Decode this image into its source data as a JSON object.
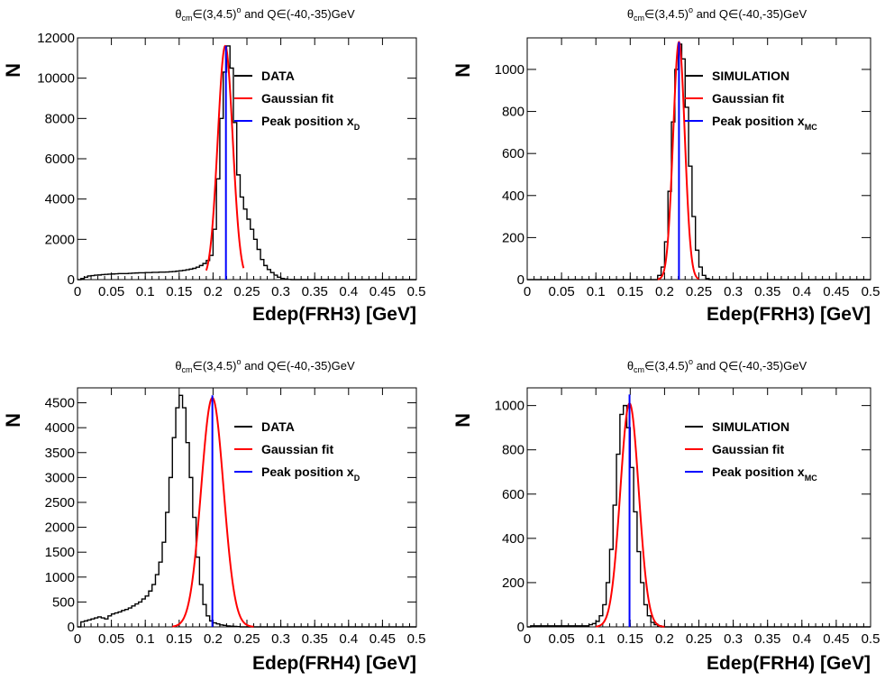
{
  "chart_data": [
    {
      "type": "histogram",
      "title": "θcm∈(3,4.5)° and Q∈(-40,-35)GeV",
      "title_parts": {
        "theta": "θ",
        "theta_sub": "cm",
        "range": "∈(3,4.5)",
        "deg": "o",
        "rest": "and Q∈(-40,-35)GeV"
      },
      "xlabel": "Edep(FRH3) [GeV]",
      "ylabel": "N",
      "xlim": [
        0,
        0.5
      ],
      "ylim": [
        0,
        12000
      ],
      "xticks": [
        "0",
        "0.05",
        "0.1",
        "0.15",
        "0.2",
        "0.25",
        "0.3",
        "0.35",
        "0.4",
        "0.45",
        "0.5"
      ],
      "yticks": [
        "0",
        "2000",
        "4000",
        "6000",
        "8000",
        "10000",
        "12000"
      ],
      "hist": {
        "bin_width": 0.005,
        "x_start": 0.0,
        "values": [
          0,
          50,
          120,
          180,
          200,
          220,
          230,
          250,
          260,
          270,
          280,
          290,
          300,
          300,
          300,
          310,
          320,
          330,
          340,
          340,
          350,
          350,
          360,
          360,
          370,
          370,
          380,
          390,
          400,
          420,
          440,
          460,
          490,
          520,
          560,
          620,
          700,
          800,
          950,
          1200,
          2500,
          5000,
          8000,
          10300,
          11600,
          10500,
          7800,
          5200,
          4100,
          3500,
          3000,
          2500,
          2000,
          1500,
          1000,
          700,
          500,
          350,
          220,
          120,
          60,
          30,
          10,
          0,
          0,
          0,
          0,
          0,
          0,
          0,
          0,
          0,
          0,
          0,
          0,
          0,
          0,
          0,
          0,
          0,
          0,
          0,
          0,
          0,
          0,
          0,
          0,
          0,
          0,
          0,
          0,
          0,
          0,
          0,
          0,
          0,
          0,
          0,
          0,
          0
        ]
      },
      "fit": {
        "amplitude": 11600,
        "mean": 0.218,
        "sigma": 0.011,
        "xrange": [
          0.19,
          0.245
        ]
      },
      "peak": {
        "x": 0.219,
        "y": 11600
      },
      "legend": [
        {
          "label": "DATA",
          "sub": "",
          "color": "#000000"
        },
        {
          "label": "Gaussian fit",
          "sub": "",
          "color": "#ff0000"
        },
        {
          "label": "Peak position x",
          "sub": "D",
          "color": "#0000ff"
        }
      ],
      "legend_position": "top-right",
      "grid": false
    },
    {
      "type": "histogram",
      "title": "θcm∈(3,4.5)° and Q∈(-40,-35)GeV",
      "title_parts": {
        "theta": "θ",
        "theta_sub": "cm",
        "range": "∈(3,4.5)",
        "deg": "o",
        "rest": "and Q∈(-40,-35)GeV"
      },
      "xlabel": "Edep(FRH3) [GeV]",
      "ylabel": "N",
      "xlim": [
        0,
        0.5
      ],
      "ylim": [
        0,
        1150
      ],
      "xticks": [
        "0",
        "0.05",
        "0.1",
        "0.15",
        "0.2",
        "0.25",
        "0.3",
        "0.35",
        "0.4",
        "0.45",
        "0.5"
      ],
      "yticks": [
        "0",
        "200",
        "400",
        "600",
        "800",
        "1000"
      ],
      "hist": {
        "bin_width": 0.005,
        "x_start": 0.0,
        "values": [
          0,
          0,
          0,
          0,
          0,
          0,
          0,
          0,
          0,
          0,
          0,
          0,
          0,
          0,
          0,
          0,
          0,
          0,
          0,
          0,
          0,
          0,
          0,
          0,
          0,
          0,
          0,
          0,
          0,
          0,
          0,
          0,
          0,
          0,
          0,
          0,
          0,
          0,
          0,
          0,
          0,
          0,
          0,
          0,
          0,
          0,
          0,
          0,
          0,
          0,
          0,
          0,
          0,
          0,
          0,
          0,
          0,
          0,
          0,
          0,
          0,
          0,
          0,
          0,
          0,
          0,
          0,
          0,
          0,
          0,
          0,
          0,
          0,
          0,
          0,
          0,
          0,
          0,
          0,
          0,
          0,
          0,
          0,
          0,
          0,
          0,
          0,
          0,
          0,
          0,
          0,
          0,
          0,
          0,
          0,
          0,
          0,
          0,
          0,
          0
        ]
      },
      "hist_sparse": [
        [
          0.19,
          20
        ],
        [
          0.195,
          60
        ],
        [
          0.2,
          180
        ],
        [
          0.205,
          420
        ],
        [
          0.21,
          750
        ],
        [
          0.215,
          1000
        ],
        [
          0.22,
          1120
        ],
        [
          0.225,
          1050
        ],
        [
          0.23,
          820
        ],
        [
          0.235,
          540
        ],
        [
          0.24,
          300
        ],
        [
          0.245,
          140
        ],
        [
          0.25,
          60
        ],
        [
          0.255,
          20
        ],
        [
          0.26,
          5
        ]
      ],
      "fit": {
        "amplitude": 1130,
        "mean": 0.221,
        "sigma": 0.0085,
        "xrange": [
          0.19,
          0.25
        ]
      },
      "peak": {
        "x": 0.221,
        "y": 1130
      },
      "legend": [
        {
          "label": "SIMULATION",
          "sub": "",
          "color": "#000000"
        },
        {
          "label": "Gaussian fit",
          "sub": "",
          "color": "#ff0000"
        },
        {
          "label": "Peak position x",
          "sub": "MC",
          "color": "#0000ff"
        }
      ],
      "legend_position": "top-right",
      "grid": false
    },
    {
      "type": "histogram",
      "title": "θcm∈(3,4.5)° and Q∈(-40,-35)GeV",
      "title_parts": {
        "theta": "θ",
        "theta_sub": "cm",
        "range": "∈(3,4.5)",
        "deg": "o",
        "rest": "and Q∈(-40,-35)GeV"
      },
      "xlabel": "Edep(FRH4) [GeV]",
      "ylabel": "N",
      "xlim": [
        0,
        0.5
      ],
      "ylim": [
        0,
        4800
      ],
      "xticks": [
        "0",
        "0.05",
        "0.1",
        "0.15",
        "0.2",
        "0.25",
        "0.3",
        "0.35",
        "0.4",
        "0.45",
        "0.5"
      ],
      "yticks": [
        "0",
        "500",
        "1000",
        "1500",
        "2000",
        "2500",
        "3000",
        "3500",
        "4000",
        "4500"
      ],
      "hist": {
        "bin_width": 0.005,
        "x_start": 0.0,
        "values": [
          0,
          100,
          120,
          140,
          160,
          180,
          200,
          180,
          160,
          220,
          260,
          280,
          300,
          330,
          350,
          380,
          420,
          460,
          500,
          560,
          620,
          720,
          850,
          1050,
          1300,
          1700,
          2300,
          3000,
          3800,
          4400,
          4650,
          4400,
          3700,
          3000,
          2200,
          1400,
          850,
          450,
          220,
          120,
          80,
          60,
          40,
          30,
          20,
          15,
          10,
          5,
          0,
          0,
          0,
          0,
          0,
          0,
          0,
          0,
          0,
          0,
          0,
          0,
          0,
          0,
          0,
          0,
          0,
          0,
          0,
          0,
          0,
          0,
          0,
          0,
          0,
          0,
          0,
          0,
          0,
          0,
          0,
          0,
          0,
          0,
          0,
          0,
          0,
          0,
          0,
          0,
          0,
          0,
          0,
          0,
          0,
          0,
          0,
          0,
          0,
          0,
          0,
          0
        ]
      },
      "fit": {
        "amplitude": 4600,
        "mean": 0.199,
        "sigma": 0.0165,
        "xrange": [
          0.14,
          0.26
        ]
      },
      "peak": {
        "x": 0.199,
        "y": 4650
      },
      "legend": [
        {
          "label": "DATA",
          "sub": "",
          "color": "#000000"
        },
        {
          "label": "Gaussian fit",
          "sub": "",
          "color": "#ff0000"
        },
        {
          "label": "Peak position x",
          "sub": "D",
          "color": "#0000ff"
        }
      ],
      "legend_position": "top-right",
      "grid": false
    },
    {
      "type": "histogram",
      "title": "θcm∈(3,4.5)° and Q∈(-40,-35)GeV",
      "title_parts": {
        "theta": "θ",
        "theta_sub": "cm",
        "range": "∈(3,4.5)",
        "deg": "o",
        "rest": "and Q∈(-40,-35)GeV"
      },
      "xlabel": "Edep(FRH4) [GeV]",
      "ylabel": "N",
      "xlim": [
        0,
        0.5
      ],
      "ylim": [
        0,
        1080
      ],
      "xticks": [
        "0",
        "0.05",
        "0.1",
        "0.15",
        "0.2",
        "0.25",
        "0.3",
        "0.35",
        "0.4",
        "0.45",
        "0.5"
      ],
      "yticks": [
        "0",
        "200",
        "400",
        "600",
        "800",
        "1000"
      ],
      "hist": {
        "bin_width": 0.005,
        "x_start": 0.0,
        "values": [
          0,
          5,
          5,
          5,
          5,
          5,
          5,
          5,
          5,
          5,
          5,
          5,
          5,
          5,
          5,
          5,
          5,
          5,
          10,
          15,
          25,
          50,
          100,
          200,
          350,
          550,
          780,
          960,
          1000,
          900,
          720,
          520,
          340,
          200,
          100,
          50,
          20,
          10,
          5,
          0,
          0,
          0,
          0,
          0,
          0,
          0,
          0,
          0,
          0,
          0,
          0,
          0,
          0,
          0,
          0,
          0,
          0,
          0,
          0,
          0,
          0,
          0,
          0,
          0,
          0,
          0,
          0,
          0,
          0,
          0,
          0,
          0,
          0,
          0,
          0,
          0,
          0,
          0,
          0,
          0,
          0,
          0,
          0,
          0,
          0,
          0,
          0,
          0,
          0,
          0,
          0,
          0,
          0,
          0,
          0,
          0,
          0,
          0,
          0,
          0
        ]
      },
      "fit": {
        "amplitude": 1010,
        "mean": 0.149,
        "sigma": 0.0135,
        "xrange": [
          0.1,
          0.2
        ]
      },
      "peak": {
        "x": 0.149,
        "y": 1050
      },
      "legend": [
        {
          "label": "SIMULATION",
          "sub": "",
          "color": "#000000"
        },
        {
          "label": "Gaussian fit",
          "sub": "",
          "color": "#ff0000"
        },
        {
          "label": "Peak position x",
          "sub": "MC",
          "color": "#0000ff"
        }
      ],
      "legend_position": "top-right",
      "grid": false
    }
  ]
}
